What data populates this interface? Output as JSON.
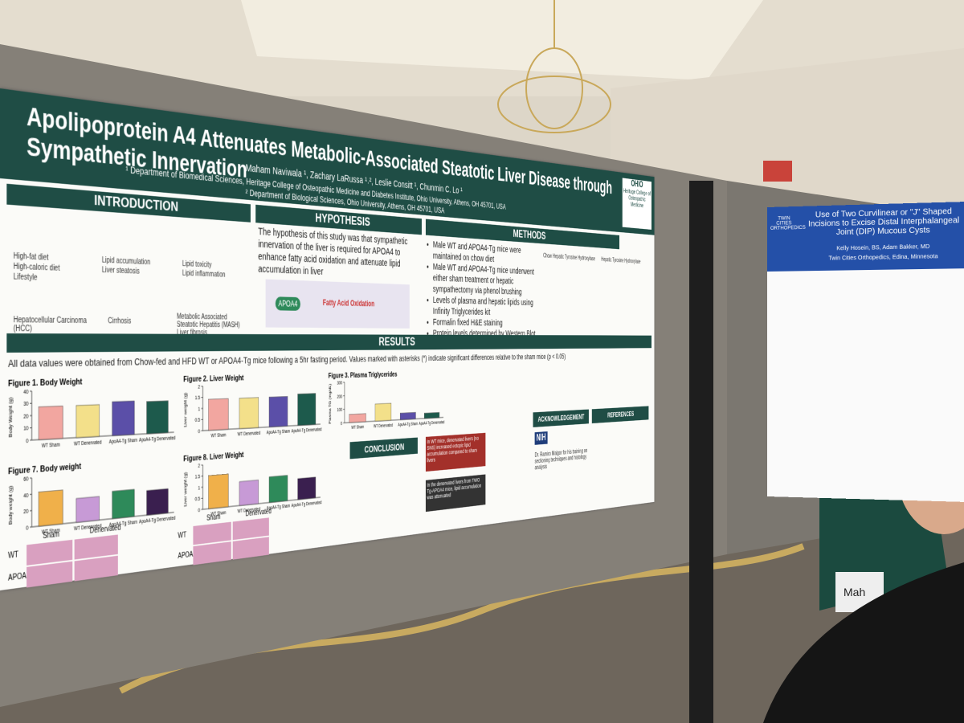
{
  "poster": {
    "title": "Apolipoprotein A4 Attenuates Metabolic-Associated Steatotic Liver Disease through Sympathetic Innervation",
    "authors": "Maham Naviwala ¹, Zachary LaRussa ¹˒², Leslie Consitt ¹, Chunmin C. Lo ¹",
    "affiliations": [
      "¹ Department of Biomedical Sciences, Heritage College of Osteopathic Medicine and Diabetes Institute, Ohio University, Athens, OH 45701, USA",
      "² Department of Biological Sciences, Ohio University, Athens, OH 45701, USA"
    ],
    "logo": [
      "OHIO",
      "Heritage College of Osteopathic Medicine"
    ],
    "introduction": {
      "heading": "INTRODUCTION",
      "labels": [
        "High-fat diet",
        "High-caloric diet",
        "Lifestyle",
        "Lipid accumulation",
        "Liver steatosis",
        "Lipid toxicity",
        "Lipid inflammation",
        "Hepatocellular Carcinoma (HCC)",
        "Cirrhosis",
        "Metabolic Associated Steatotic Hepatitis (MASH)",
        "Liver fibrosis"
      ]
    },
    "hypothesis": {
      "heading": "HYPOTHESIS",
      "text": "The hypothesis of this study was that sympathetic innervation of the liver is required for APOA4 to enhance fatty acid oxidation and attenuate lipid accumulation in liver",
      "labels": [
        "APOA4",
        "Fatty Acid Oxidation"
      ]
    },
    "methods": {
      "heading": "METHODS",
      "bullets": [
        "Male WT and APOA4-Tg mice were maintained on chow diet",
        "Male WT and APOA4-Tg mice underwent either sham treatment or hepatic sympathectomy via phenol brushing",
        "Levels of plasma and hepatic lipids using Infinity Triglycerides kit",
        "Formalin fixed H&E staining",
        "Protein levels determined by Western Blot"
      ],
      "figures": [
        "Chow Hepatic Tyrosine Hydroxylase",
        "Hepatic Tyrosine Hydroxylase"
      ]
    },
    "results": {
      "heading": "RESULTS",
      "text": "All data values were obtained from Chow-fed and HFD WT or APOA4-Tg mice following a 5hr fasting period. Values marked with asterisks (*) indicate significant differences relative to the sham mice (p < 0.05)"
    },
    "figures": [
      {
        "title": "Figure 1. Body Weight",
        "ylabel": "Body Weight (g)",
        "categories": [
          "WT Sham",
          "WT Denervated",
          "ApoA4-Tg Sham",
          "ApoA4-Tg Denervated"
        ],
        "values": [
          27,
          27,
          29,
          28
        ],
        "colors": [
          "#f2a6a0",
          "#f3e08a",
          "#5b4fa8",
          "#1d5a4c"
        ],
        "ylim": [
          0,
          40
        ],
        "yticks": [
          0,
          10,
          20,
          30,
          40
        ]
      },
      {
        "title": "Figure 2. Liver Weight",
        "ylabel": "Liver weight (g)",
        "categories": [
          "WT Sham",
          "WT Denervated",
          "ApoA4-Tg Sham",
          "ApoA4-Tg Denervated"
        ],
        "values": [
          1.4,
          1.4,
          1.4,
          1.5
        ],
        "colors": [
          "#f2a6a0",
          "#f3e08a",
          "#5b4fa8",
          "#1d5a4c"
        ],
        "ylim": [
          0,
          2
        ],
        "yticks": [
          0,
          0.5,
          1,
          1.5,
          2
        ]
      },
      {
        "title": "Figure 3. Plasma Triglycerides",
        "ylabel": "Plasma TG (mg/dL)",
        "categories": [
          "WT Sham",
          "WT Denervated",
          "ApoA4-Tg Sham",
          "ApoA4-Tg Denervated"
        ],
        "values": [
          60,
          130,
          50,
          40
        ],
        "colors": [
          "#f2a6a0",
          "#f3e08a",
          "#5b4fa8",
          "#1d5a4c"
        ],
        "ylim": [
          0,
          300
        ],
        "yticks": [
          0,
          100,
          200,
          300
        ]
      },
      {
        "title": "Figure 7. Body weight",
        "ylabel": "Body weight (g)",
        "categories": [
          "WT Sham",
          "WT Denervated",
          "ApoA4-Tg Sham",
          "ApoA4-Tg Denervated"
        ],
        "values": [
          42,
          30,
          35,
          32
        ],
        "colors": [
          "#f0b04a",
          "#c79ad6",
          "#2e8a5a",
          "#3a1f4f"
        ],
        "ylim": [
          0,
          60
        ],
        "yticks": [
          0,
          20,
          40,
          60
        ]
      },
      {
        "title": "Figure 8. Liver Weight",
        "ylabel": "Liver weight (g)",
        "categories": [
          "WT Sham",
          "WT Denervated",
          "ApoA4-Tg Sham",
          "ApoA4-Tg Denervated"
        ],
        "values": [
          1.5,
          1.1,
          1.2,
          1.0
        ],
        "colors": [
          "#f0b04a",
          "#c79ad6",
          "#2e8a5a",
          "#3a1f4f"
        ],
        "ylim": [
          0,
          2
        ],
        "yticks": [
          0,
          0.5,
          1,
          1.5,
          2
        ]
      }
    ],
    "histology": {
      "columns": [
        "Sham",
        "Denervated"
      ],
      "rows": [
        "WT",
        "APOA4"
      ]
    },
    "conclusion": {
      "heading": "CONCLUSION",
      "labels": [
        "In WT mice, denervated livers (no SNS) increased ectopic lipid accumulation compared to sham livers",
        "In the denervated livers from TWO Tg-APOA4 mice, lipid accumulation was attenuated"
      ]
    },
    "acknowledgement": {
      "heading": "ACKNOWLEDGEMENT",
      "funder": "NIH",
      "text": "Dr. Ramiro Malgor for his training on sectioning techniques and histology analysis"
    },
    "references": {
      "heading": "REFERENCES"
    }
  },
  "second_poster": {
    "title": "Use of Two Curvilinear or \"J\" Shaped Incisions to Excise Distal Interphalangeal Joint (DIP) Mucous Cysts",
    "authors": "Kelly Hosein, BS, Adam Bakker, MD",
    "affiliation": "Twin Cities Orthopedics, Edina, Minnesota",
    "logo": "TWIN CITIES ORTHOPEDICS"
  },
  "badge": "Mah"
}
